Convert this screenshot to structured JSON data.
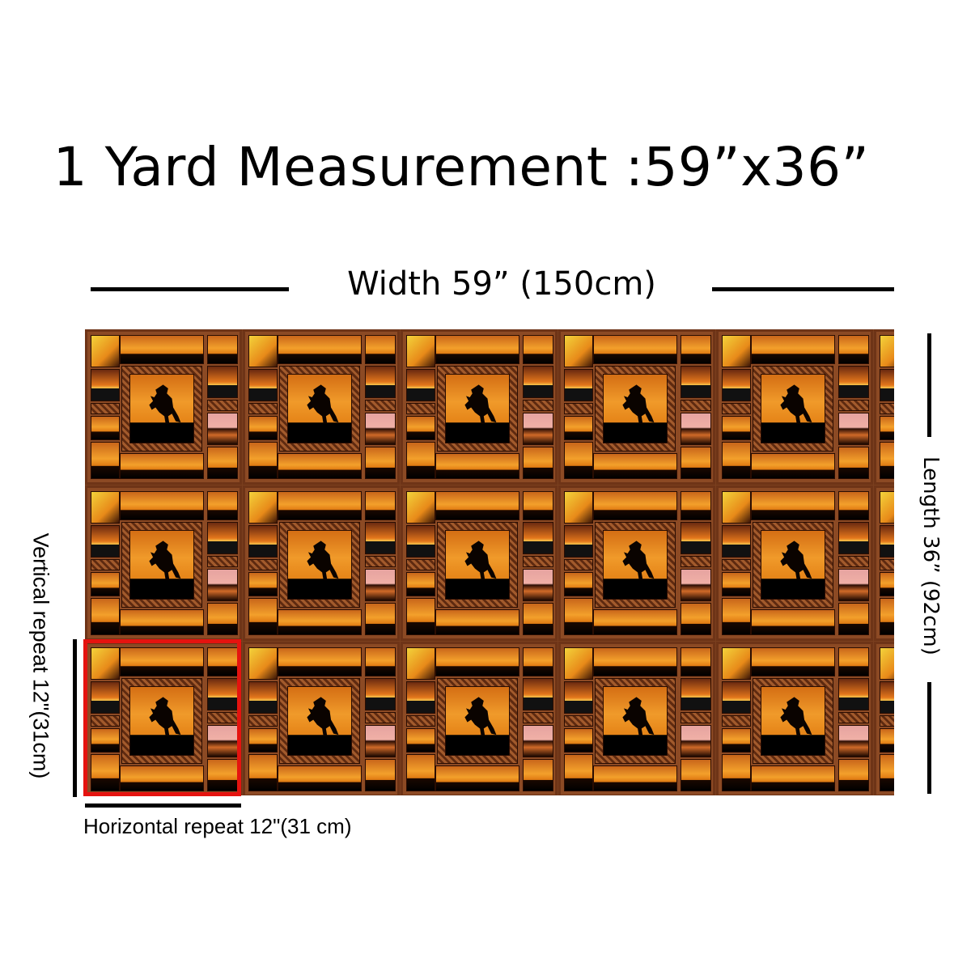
{
  "title": "1 Yard Measurement :59”x36”",
  "width_label": "Width 59”  (150cm)",
  "length_label": "Length 36”  (92cm)",
  "vertical_repeat_label": "Vertical repeat 12\"(31cm)",
  "horizontal_repeat_label": "Horizontal repeat 12\"(31 cm)",
  "fabric": {
    "pattern": "rearing horse sunset patchwork",
    "columns_visible": 6,
    "rows_visible": 3
  },
  "colors": {
    "highlight_box": "#e5130f",
    "fabric_border": "#8c4a24",
    "sunset_orange": "#f09a2a"
  }
}
